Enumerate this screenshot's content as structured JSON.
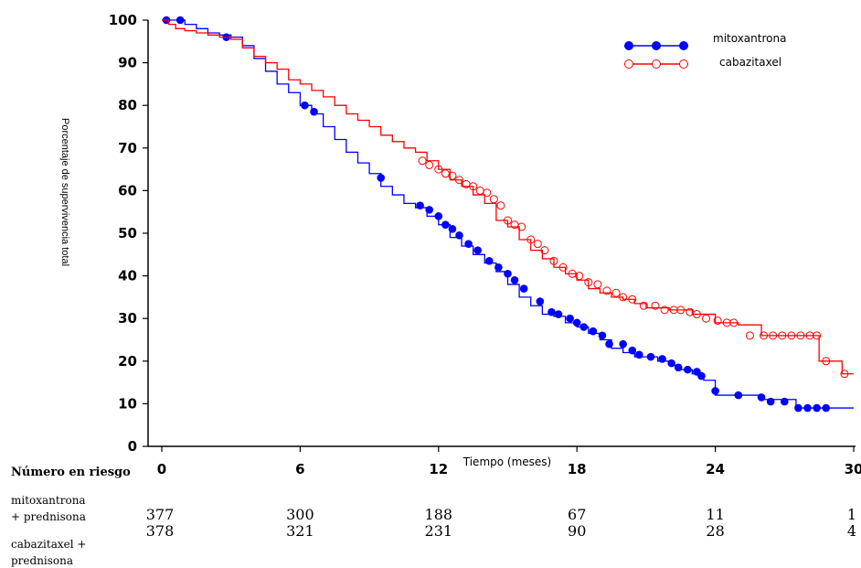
{
  "chart_data": {
    "type": "line",
    "title": "",
    "xlabel": "Tiempo (meses)",
    "ylabel": "Porcentaje de supervivencia total",
    "xlim": [
      0,
      30
    ],
    "ylim": [
      0,
      100
    ],
    "x_ticks": [
      0,
      6,
      12,
      18,
      24,
      30
    ],
    "y_ticks": [
      0,
      10,
      20,
      30,
      40,
      50,
      60,
      70,
      80,
      90,
      100
    ],
    "legend_position": "top-right",
    "series": [
      {
        "name": "mitoxantrona",
        "color": "#0000ff",
        "marker": "filled-circle",
        "x": [
          0,
          0.3,
          0.6,
          1,
          1.5,
          2,
          2.5,
          3,
          3.5,
          4,
          4.5,
          5,
          5.5,
          6,
          6.5,
          7,
          7.5,
          8,
          8.5,
          9,
          9.5,
          10,
          10.5,
          11,
          11.5,
          12,
          12.5,
          13,
          13.5,
          14,
          14.5,
          15,
          15.5,
          16,
          16.5,
          17,
          17.5,
          18,
          18.5,
          19,
          19.5,
          20,
          20.5,
          21,
          21.5,
          22,
          22.5,
          23,
          23.5,
          24,
          25,
          26,
          27,
          27.5,
          28,
          29,
          30
        ],
        "y": [
          100,
          100,
          100,
          99,
          98,
          97,
          96.5,
          96,
          94,
          91,
          88,
          85,
          83,
          80,
          78,
          75,
          72,
          69,
          66.5,
          64,
          61,
          59,
          57,
          56,
          54,
          52,
          49,
          47,
          45,
          43,
          41,
          38,
          35,
          33,
          31,
          30.5,
          29,
          28,
          26.5,
          25,
          23,
          22,
          21,
          21,
          20,
          19,
          18,
          17,
          15.5,
          12,
          12,
          11,
          11,
          9,
          9,
          9,
          9
        ],
        "markers_x": [
          0.2,
          0.8,
          2.8,
          6.2,
          6.6,
          9.5,
          11.2,
          11.6,
          12,
          12.3,
          12.6,
          12.9,
          13.3,
          13.7,
          14.2,
          14.6,
          15,
          15.3,
          15.7,
          16.4,
          16.9,
          17.2,
          17.7,
          18,
          18.3,
          18.7,
          19.1,
          19.4,
          20,
          20.4,
          20.7,
          21.2,
          21.7,
          22.1,
          22.4,
          22.8,
          23.2,
          23.4,
          24,
          25,
          26,
          26.4,
          27,
          27.6,
          28,
          28.4,
          28.8
        ],
        "markers_y": [
          100,
          100,
          96,
          80,
          78.5,
          63,
          56.5,
          55.5,
          54,
          52,
          51,
          49.5,
          47.5,
          46,
          43.5,
          42,
          40.5,
          39,
          37,
          34,
          31.5,
          31,
          30,
          29,
          28,
          27,
          26,
          24,
          24,
          22.5,
          21.5,
          21,
          20.5,
          19.5,
          18.5,
          18,
          17.5,
          16.5,
          13,
          12,
          11.5,
          10.5,
          10.5,
          9,
          9,
          9,
          9
        ]
      },
      {
        "name": "cabazitaxel",
        "color": "#ff0000",
        "marker": "open-circle",
        "x": [
          0,
          0.3,
          0.6,
          1,
          1.5,
          2,
          2.5,
          3,
          3.5,
          4,
          4.5,
          5,
          5.5,
          6,
          6.5,
          7,
          7.5,
          8,
          8.5,
          9,
          9.5,
          10,
          10.5,
          11,
          11.5,
          12,
          12.5,
          13,
          13.5,
          14,
          14.5,
          15,
          15.5,
          16,
          16.5,
          17,
          17.5,
          18,
          18.5,
          19,
          19.5,
          20,
          20.5,
          21,
          22,
          23,
          24,
          25,
          26,
          27,
          28,
          28.5,
          29,
          29.5,
          30
        ],
        "y": [
          100,
          99,
          98,
          97.5,
          97,
          96.5,
          96,
          95.5,
          93.5,
          91.5,
          90,
          88.5,
          86,
          85,
          83.5,
          82,
          80,
          78,
          76.5,
          75,
          73,
          71.5,
          70,
          69,
          67,
          65,
          62.5,
          61,
          59,
          57,
          53,
          51.5,
          48.5,
          46,
          44,
          42,
          40.5,
          39,
          37,
          36,
          35,
          34.5,
          33.5,
          32.5,
          32,
          31,
          29,
          28.5,
          26,
          26,
          26,
          20,
          20,
          17,
          17
        ],
        "markers_x": [
          11.3,
          11.6,
          12,
          12.3,
          12.6,
          12.9,
          13.2,
          13.5,
          13.8,
          14.1,
          14.4,
          14.7,
          15,
          15.3,
          15.6,
          16,
          16.3,
          16.6,
          17,
          17.4,
          17.8,
          18.1,
          18.5,
          18.9,
          19.3,
          19.7,
          20,
          20.4,
          20.9,
          21.4,
          21.8,
          22.2,
          22.5,
          22.9,
          23.2,
          23.6,
          24.1,
          24.5,
          24.8,
          25.5,
          26.1,
          26.5,
          26.9,
          27.3,
          27.7,
          28.1,
          28.4,
          28.8,
          29.6
        ],
        "markers_y": [
          67,
          66,
          65,
          64,
          63.5,
          62.5,
          61.5,
          61,
          60,
          59.5,
          58,
          56.5,
          53,
          52,
          51.5,
          48.5,
          47.5,
          46,
          43.5,
          42,
          40.5,
          40,
          38.5,
          38,
          36.5,
          36,
          35,
          34.5,
          33,
          33,
          32,
          32,
          32,
          31.5,
          31,
          30,
          29.5,
          29,
          29,
          26,
          26,
          26,
          26,
          26,
          26,
          26,
          26,
          20,
          17
        ]
      }
    ]
  },
  "risk_table": {
    "header": "Número en riesgo",
    "rows": [
      {
        "label_line1": "mitoxantrona",
        "label_line2": "+ prednisona",
        "values": [
          "377",
          "300",
          "188",
          "67",
          "11",
          "1"
        ]
      },
      {
        "label_line1": "cabazitaxel +",
        "label_line2": "prednisona",
        "values": [
          "378",
          "321",
          "231",
          "90",
          "28",
          "4"
        ]
      }
    ]
  }
}
